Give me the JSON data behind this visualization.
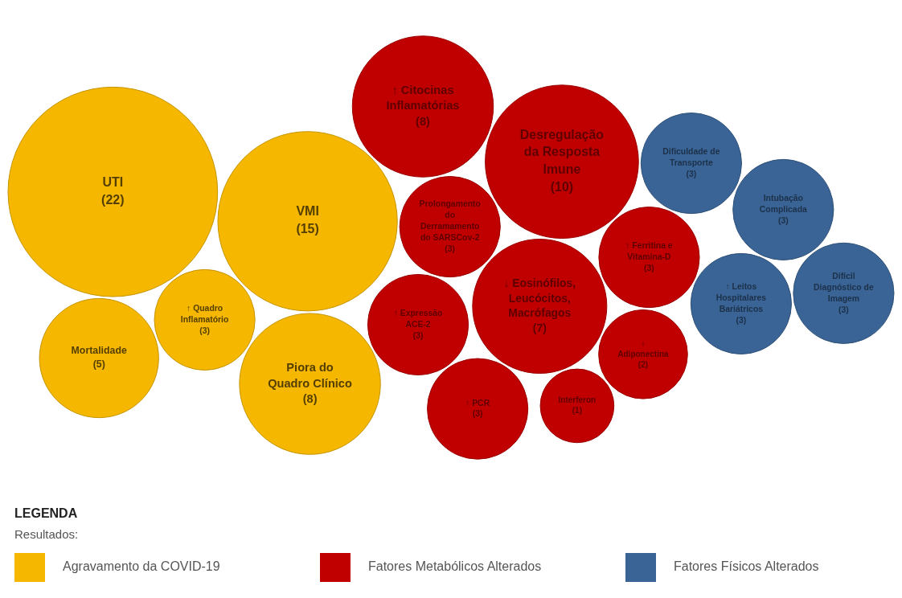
{
  "chart_data": {
    "type": "other",
    "categories": [
      "UTI",
      "VMI",
      "Piora do Quadro Clínico",
      "Mortalidade",
      "↑ Quadro Inflamatório",
      "Desregulação da Resposta Imune",
      "↑ Citocinas Inflamatórias",
      "↓ Eosinófilos, Leucócitos, Macrófagos",
      "↓ Adiponectina",
      "↑ PCR",
      "Prolongamento do Derramamento do SARSCov-2",
      "↑ Ferritina e Vitamina-D",
      "↑ Expressão ACE-2",
      "Interferon",
      "↑ Leitos Hospitalares Bariátricos",
      "Dificuldade de Transporte",
      "Intubação Complicada",
      "Difícil Diagnóstico de Imagem"
    ],
    "series": [
      {
        "name": "Agravamento da COVID-19",
        "color": "#f5b700",
        "values": [
          22,
          15,
          8,
          5,
          3,
          null,
          null,
          null,
          null,
          null,
          null,
          null,
          null,
          null,
          null,
          null,
          null,
          null
        ],
        "value_labels": [
          "(22)",
          "(15)",
          "(8)",
          "(5)",
          "(3)",
          null,
          null,
          null,
          null,
          null,
          null,
          null,
          null,
          null,
          null,
          null,
          null,
          null
        ]
      },
      {
        "name": "Fatores Metabólicos Alterados",
        "color": "#c00000",
        "values": [
          null,
          null,
          null,
          null,
          null,
          10,
          8,
          7,
          2,
          3,
          3,
          3,
          3,
          1,
          null,
          null,
          null,
          null
        ],
        "value_labels": [
          null,
          null,
          null,
          null,
          null,
          "(10)",
          "(8)",
          "(7)",
          "(2)",
          "(3)",
          "(3)",
          "(3)",
          "(3)",
          "(1)",
          null,
          null,
          null,
          null
        ]
      },
      {
        "name": "Fatores Físicos Alterados",
        "color": "#3a6496",
        "values": [
          null,
          null,
          null,
          null,
          null,
          null,
          null,
          null,
          null,
          null,
          null,
          null,
          null,
          null,
          3,
          3,
          3,
          3
        ],
        "value_labels": [
          null,
          null,
          null,
          null,
          null,
          null,
          null,
          null,
          null,
          null,
          null,
          null,
          null,
          null,
          "(3)",
          "(3)",
          "(3)",
          "(3)"
        ]
      }
    ],
    "legend": "bottom",
    "legend_title": "LEGENDA",
    "annotations": [
      "Resultados:"
    ]
  }
}
